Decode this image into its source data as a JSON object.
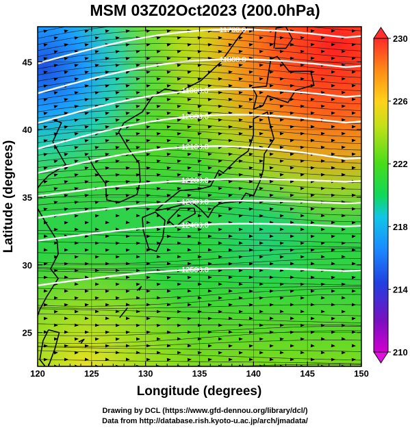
{
  "title": "MSM 03Z02Oct2023 (200.0hPa)",
  "x_axis": {
    "label": "Longitude (degrees)",
    "ticks": [
      "120",
      "125",
      "130",
      "135",
      "140",
      "145",
      "150"
    ],
    "range": [
      120,
      150
    ]
  },
  "y_axis": {
    "label": "Latitude  (degrees)",
    "ticks": [
      "25",
      "30",
      "35",
      "40",
      "45"
    ],
    "range": [
      22.5,
      47.6
    ]
  },
  "colorbar": {
    "ticks": [
      "230",
      "226",
      "222",
      "218",
      "214",
      "210"
    ],
    "range": [
      210,
      230
    ],
    "colors": [
      "#d100d1",
      "#3a1fb0",
      "#2270ff",
      "#11c6e6",
      "#10d85a",
      "#48dc1a",
      "#c2e018",
      "#ffd21a",
      "#ff8a14",
      "#ff2a2a"
    ]
  },
  "contours": [
    {
      "label": "11700.0",
      "lat": 46.4
    },
    {
      "label": "11800.0",
      "lat": 44.2
    },
    {
      "label": "11900.0",
      "lat": 42.0
    },
    {
      "label": "12000.0",
      "lat": 40.1
    },
    {
      "label": "12100.0",
      "lat": 38.3
    },
    {
      "label": "12200.0",
      "lat": 36.6
    },
    {
      "label": "12300.0",
      "lat": 35.0
    },
    {
      "label": "12400.0",
      "lat": 33.3
    },
    {
      "label": "12500.0",
      "lat": 30.0
    }
  ],
  "footer": {
    "line1": "Drawing by DCL (https://www.gfd-dennou.org/library/dcl/)",
    "line2": "Data from http://database.rish.kyoto-u.ac.jp/arch/jmadata/"
  }
}
